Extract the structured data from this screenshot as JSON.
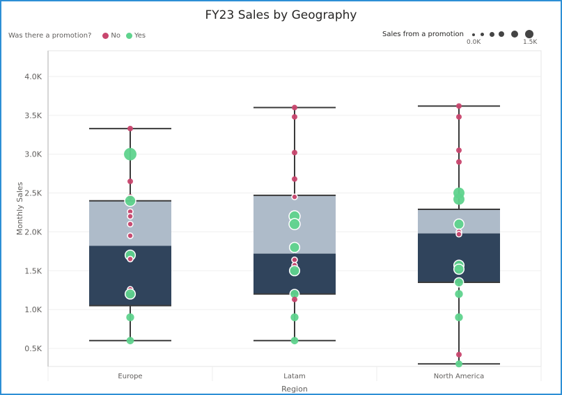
{
  "title": "FY23 Sales by Geography",
  "legend": {
    "color_title": "Was there a promotion?",
    "items": [
      {
        "label": "No",
        "color": "#c8466e"
      },
      {
        "label": "Yes",
        "color": "#5fd38d"
      }
    ],
    "size_title": "Sales from a promotion",
    "size_min_label": "0.0K",
    "size_max_label": "1.5K"
  },
  "axes": {
    "y_title": "Monthly Sales",
    "x_title": "Region",
    "y_ticks": [
      "0.5K",
      "1.0K",
      "1.5K",
      "2.0K",
      "2.5K",
      "3.0K",
      "3.5K",
      "4.0K"
    ]
  },
  "colors": {
    "frame": "#2d8fd5",
    "box_upper": "#aebbc9",
    "box_lower": "#30445c",
    "whisker": "#3a3a3a",
    "no": "#c8466e",
    "yes": "#5fd38d"
  },
  "chart_data": {
    "type": "box",
    "title": "FY23 Sales by Geography",
    "xlabel": "Region",
    "ylabel": "Monthly Sales",
    "ylim": [
      0.25,
      4.25
    ],
    "y_unit": "K",
    "grid": true,
    "legend_position": "top",
    "categories": [
      "Europe",
      "Latam",
      "North America"
    ],
    "boxes": [
      {
        "category": "Europe",
        "min": 0.6,
        "q1": 1.05,
        "median": 1.82,
        "q3": 2.4,
        "max": 3.33
      },
      {
        "category": "Latam",
        "min": 0.6,
        "q1": 1.2,
        "median": 1.72,
        "q3": 2.47,
        "max": 3.6
      },
      {
        "category": "North America",
        "min": 0.3,
        "q1": 1.35,
        "median": 1.98,
        "q3": 2.29,
        "max": 3.62
      }
    ],
    "points": {
      "Europe": [
        {
          "y": 3.33,
          "promo": "No",
          "size": 0
        },
        {
          "y": 3.0,
          "promo": "Yes",
          "size": 1.5
        },
        {
          "y": 2.65,
          "promo": "No",
          "size": 0
        },
        {
          "y": 2.45,
          "promo": "No",
          "size": 0
        },
        {
          "y": 2.4,
          "promo": "Yes",
          "size": 1.2
        },
        {
          "y": 2.26,
          "promo": "No",
          "size": 0
        },
        {
          "y": 2.2,
          "promo": "No",
          "size": 0
        },
        {
          "y": 2.1,
          "promo": "No",
          "size": 0
        },
        {
          "y": 1.95,
          "promo": "No",
          "size": 0
        },
        {
          "y": 1.7,
          "promo": "Yes",
          "size": 1.0
        },
        {
          "y": 1.65,
          "promo": "No",
          "size": 0
        },
        {
          "y": 1.26,
          "promo": "No",
          "size": 0
        },
        {
          "y": 1.2,
          "promo": "Yes",
          "size": 1.0
        },
        {
          "y": 0.9,
          "promo": "Yes",
          "size": 0.5
        },
        {
          "y": 0.6,
          "promo": "Yes",
          "size": 0.4
        }
      ],
      "Latam": [
        {
          "y": 3.6,
          "promo": "No",
          "size": 0
        },
        {
          "y": 3.48,
          "promo": "No",
          "size": 0
        },
        {
          "y": 3.02,
          "promo": "No",
          "size": 0
        },
        {
          "y": 2.68,
          "promo": "No",
          "size": 0
        },
        {
          "y": 2.45,
          "promo": "No",
          "size": 0
        },
        {
          "y": 2.2,
          "promo": "Yes",
          "size": 1.2
        },
        {
          "y": 2.1,
          "promo": "Yes",
          "size": 1.2
        },
        {
          "y": 1.8,
          "promo": "Yes",
          "size": 1.0
        },
        {
          "y": 1.64,
          "promo": "No",
          "size": 0
        },
        {
          "y": 1.57,
          "promo": "No",
          "size": 0
        },
        {
          "y": 1.5,
          "promo": "Yes",
          "size": 1.0
        },
        {
          "y": 1.2,
          "promo": "Yes",
          "size": 0.8
        },
        {
          "y": 1.13,
          "promo": "No",
          "size": 0
        },
        {
          "y": 0.9,
          "promo": "Yes",
          "size": 0.5
        },
        {
          "y": 0.6,
          "promo": "Yes",
          "size": 0.4
        }
      ],
      "North America": [
        {
          "y": 3.62,
          "promo": "No",
          "size": 0
        },
        {
          "y": 3.48,
          "promo": "No",
          "size": 0
        },
        {
          "y": 3.05,
          "promo": "No",
          "size": 0
        },
        {
          "y": 2.9,
          "promo": "No",
          "size": 0
        },
        {
          "y": 2.5,
          "promo": "Yes",
          "size": 1.2
        },
        {
          "y": 2.42,
          "promo": "Yes",
          "size": 1.2
        },
        {
          "y": 2.1,
          "promo": "Yes",
          "size": 1.0
        },
        {
          "y": 2.0,
          "promo": "No",
          "size": 0
        },
        {
          "y": 1.97,
          "promo": "No",
          "size": 0
        },
        {
          "y": 1.57,
          "promo": "Yes",
          "size": 1.0
        },
        {
          "y": 1.52,
          "promo": "Yes",
          "size": 1.0
        },
        {
          "y": 1.35,
          "promo": "Yes",
          "size": 0.8
        },
        {
          "y": 1.2,
          "promo": "Yes",
          "size": 0.5
        },
        {
          "y": 0.9,
          "promo": "Yes",
          "size": 0.5
        },
        {
          "y": 0.42,
          "promo": "No",
          "size": 0
        },
        {
          "y": 0.3,
          "promo": "Yes",
          "size": 0.3
        }
      ]
    }
  }
}
